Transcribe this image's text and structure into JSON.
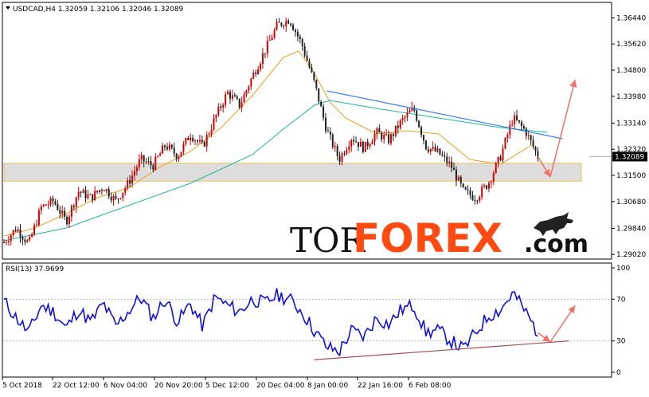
{
  "chart_data": [
    {
      "type": "candlestick",
      "title": "USDCAD,H4",
      "header": {
        "symbol": "USDCAD,H4",
        "open": "1.32059",
        "high": "1.32106",
        "low": "1.32046",
        "close": "1.32089"
      },
      "y_ticks": [
        "1.36440",
        "1.35620",
        "1.34800",
        "1.33980",
        "1.33140",
        "1.32320",
        "1.31500",
        "1.30680",
        "1.29840",
        "1.29020"
      ],
      "ylim": [
        1.2895,
        1.368
      ],
      "current_price": "1.32089",
      "current_price_value": 1.32089,
      "x_ticks": [
        "5 Oct 2018",
        "22 Oct 12:00",
        "6 Nov 04:00",
        "20 Nov 20:00",
        "5 Dec 12:00",
        "20 Dec 04:00",
        "8 Jan 00:00",
        "22 Jan 16:00",
        "6 Feb 08:00"
      ],
      "close_path": [
        [
          0,
          1.294
        ],
        [
          4,
          1.2985
        ],
        [
          8,
          1.2935
        ],
        [
          12,
          1.305
        ],
        [
          16,
          1.307
        ],
        [
          20,
          1.3005
        ],
        [
          24,
          1.31
        ],
        [
          28,
          1.308
        ],
        [
          32,
          1.3115
        ],
        [
          36,
          1.307
        ],
        [
          40,
          1.3125
        ],
        [
          44,
          1.32
        ],
        [
          48,
          1.318
        ],
        [
          52,
          1.3245
        ],
        [
          56,
          1.321
        ],
        [
          60,
          1.328
        ],
        [
          64,
          1.324
        ],
        [
          68,
          1.333
        ],
        [
          72,
          1.341
        ],
        [
          76,
          1.337
        ],
        [
          80,
          1.346
        ],
        [
          84,
          1.354
        ],
        [
          88,
          1.362
        ],
        [
          92,
          1.364
        ],
        [
          96,
          1.356
        ],
        [
          100,
          1.344
        ],
        [
          104,
          1.329
        ],
        [
          108,
          1.32
        ],
        [
          112,
          1.327
        ],
        [
          116,
          1.3235
        ],
        [
          120,
          1.3285
        ],
        [
          124,
          1.326
        ],
        [
          128,
          1.332
        ],
        [
          132,
          1.336
        ],
        [
          136,
          1.324
        ],
        [
          140,
          1.322
        ],
        [
          144,
          1.318
        ],
        [
          148,
          1.31
        ],
        [
          152,
          1.308
        ],
        [
          156,
          1.3125
        ],
        [
          160,
          1.321
        ],
        [
          164,
          1.333
        ],
        [
          168,
          1.329
        ],
        [
          172,
          1.3209
        ]
      ],
      "ma_fast": [
        [
          0,
          1.296
        ],
        [
          10,
          1.2985
        ],
        [
          20,
          1.303
        ],
        [
          30,
          1.308
        ],
        [
          40,
          1.311
        ],
        [
          50,
          1.3175
        ],
        [
          60,
          1.3225
        ],
        [
          70,
          1.33
        ],
        [
          80,
          1.34
        ],
        [
          90,
          1.352
        ],
        [
          95,
          1.354
        ],
        [
          100,
          1.347
        ],
        [
          105,
          1.338
        ],
        [
          110,
          1.333
        ],
        [
          120,
          1.328
        ],
        [
          130,
          1.329
        ],
        [
          140,
          1.328
        ],
        [
          150,
          1.32
        ],
        [
          160,
          1.3185
        ],
        [
          170,
          1.3245
        ]
      ],
      "ma_slow": [
        [
          0,
          1.2945
        ],
        [
          20,
          1.2985
        ],
        [
          40,
          1.3055
        ],
        [
          60,
          1.3125
        ],
        [
          80,
          1.3215
        ],
        [
          90,
          1.3295
        ],
        [
          100,
          1.337
        ],
        [
          105,
          1.3385
        ],
        [
          120,
          1.336
        ],
        [
          140,
          1.333
        ],
        [
          160,
          1.33
        ],
        [
          175,
          1.3285
        ]
      ],
      "resistance_line": {
        "from": [
          104,
          1.3415
        ],
        "to": [
          180,
          1.3265
        ]
      },
      "support_zone": {
        "x_from": 0,
        "x_to": 186,
        "y_low": 1.3132,
        "y_high": 1.3188
      },
      "forecast_arrows": [
        {
          "from": [
            172,
            1.3209
          ],
          "to": [
            176,
            1.3145
          ]
        },
        {
          "from": [
            176,
            1.3145
          ],
          "to": [
            184,
            1.345
          ]
        }
      ],
      "annotations": {
        "price_label": "1.32089"
      }
    },
    {
      "type": "line",
      "title": "RSI(13) 37.9699",
      "series": [
        {
          "name": "RSI(13)",
          "value_label": "37.9699"
        }
      ],
      "y_ticks": [
        "100",
        "70",
        "30",
        "0"
      ],
      "ylim": [
        0,
        100
      ],
      "levels": [
        30,
        70
      ],
      "values": [
        [
          0,
          68
        ],
        [
          4,
          52
        ],
        [
          8,
          38
        ],
        [
          12,
          64
        ],
        [
          16,
          58
        ],
        [
          20,
          42
        ],
        [
          24,
          60
        ],
        [
          28,
          48
        ],
        [
          32,
          66
        ],
        [
          36,
          44
        ],
        [
          40,
          58
        ],
        [
          44,
          72
        ],
        [
          48,
          52
        ],
        [
          52,
          70
        ],
        [
          56,
          48
        ],
        [
          60,
          66
        ],
        [
          64,
          44
        ],
        [
          68,
          72
        ],
        [
          72,
          64
        ],
        [
          76,
          58
        ],
        [
          80,
          70
        ],
        [
          84,
          66
        ],
        [
          88,
          74
        ],
        [
          92,
          70
        ],
        [
          96,
          58
        ],
        [
          100,
          40
        ],
        [
          104,
          24
        ],
        [
          108,
          20
        ],
        [
          112,
          40
        ],
        [
          116,
          34
        ],
        [
          120,
          52
        ],
        [
          124,
          46
        ],
        [
          128,
          60
        ],
        [
          132,
          64
        ],
        [
          136,
          38
        ],
        [
          140,
          40
        ],
        [
          144,
          30
        ],
        [
          148,
          22
        ],
        [
          152,
          38
        ],
        [
          156,
          54
        ],
        [
          160,
          60
        ],
        [
          164,
          76
        ],
        [
          168,
          58
        ],
        [
          172,
          38
        ]
      ],
      "trend_line": {
        "from": [
          100,
          12
        ],
        "to": [
          182,
          30
        ]
      },
      "forecast_arrows": [
        {
          "from": [
            172,
            38
          ],
          "to": [
            176,
            29
          ]
        },
        {
          "from": [
            176,
            29
          ],
          "to": [
            184,
            64
          ]
        }
      ]
    }
  ],
  "logo": {
    "tor": "TOR",
    "forex": "FOREX",
    "com": ".com"
  },
  "colors": {
    "bull_candle": "#d40000",
    "bear_candle": "#202020",
    "ma_fast": "#e8a020",
    "ma_slow": "#20b0a0",
    "rsi_line": "#1010e0",
    "resistance": "#3a80e0",
    "support_fill": "#d9d9d9",
    "support_border": "#e8c060",
    "arrow": "#f07068",
    "rsi_trend": "#a05050",
    "logo_orange": "#ff4a12"
  }
}
